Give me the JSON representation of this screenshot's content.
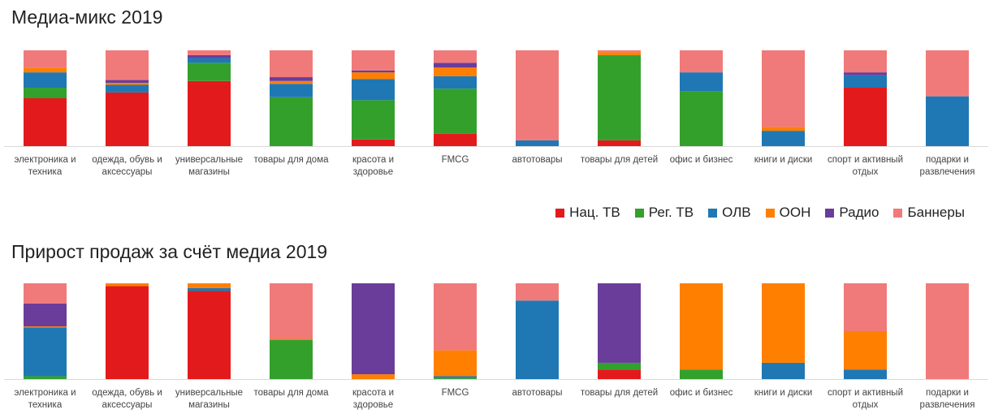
{
  "chart_data": [
    {
      "type": "bar",
      "stacked": "100%",
      "title": "Медиа-микс 2019",
      "categories": [
        [
          "электроника и",
          "техника"
        ],
        [
          "одежда, обувь и",
          "аксессуары"
        ],
        [
          "универсальные",
          "магазины"
        ],
        [
          "товары для дома"
        ],
        [
          "красота и",
          "здоровье"
        ],
        [
          "FMCG"
        ],
        [
          "автотовары"
        ],
        [
          "товары для детей"
        ],
        [
          "офис и бизнес"
        ],
        [
          "книги и диски"
        ],
        [
          "спорт и активный",
          "отдых"
        ],
        [
          "подарки и",
          "развлечения"
        ]
      ],
      "series": [
        {
          "name": "Нац. ТВ",
          "color": "#e31a1c",
          "values": [
            50,
            56,
            68,
            0,
            7,
            13,
            0,
            6,
            0,
            0,
            61,
            0
          ]
        },
        {
          "name": "Рег. ТВ",
          "color": "#33a02c",
          "values": [
            11,
            0,
            19,
            51,
            41,
            47,
            0,
            89,
            57,
            0,
            0,
            0
          ]
        },
        {
          "name": "ОЛВ",
          "color": "#1f78b4",
          "values": [
            16,
            8,
            5,
            14,
            22,
            13,
            6,
            0,
            20,
            16,
            13,
            52
          ]
        },
        {
          "name": "ООН",
          "color": "#ff7f00",
          "values": [
            5,
            2,
            0,
            3,
            7,
            9,
            0,
            3,
            0,
            4,
            0,
            0
          ]
        },
        {
          "name": "Радио",
          "color": "#6a3d9a",
          "values": [
            0,
            3,
            3,
            4,
            2,
            5,
            0,
            0,
            0,
            0,
            3,
            0
          ]
        },
        {
          "name": "Баннеры",
          "color": "#f07a7a",
          "values": [
            18,
            31,
            5,
            28,
            21,
            13,
            94,
            2,
            23,
            80,
            23,
            48
          ]
        }
      ],
      "ylim": [
        0,
        100
      ]
    },
    {
      "type": "bar",
      "stacked": "100%",
      "title": "Прирост продаж за счёт медиа 2019",
      "categories": [
        [
          "электроника и",
          "техника"
        ],
        [
          "одежда, обувь и",
          "аксессуары"
        ],
        [
          "универсальные",
          "магазины"
        ],
        [
          "товары для дома"
        ],
        [
          "красота и",
          "здоровье"
        ],
        [
          "FMCG"
        ],
        [
          "автотовары"
        ],
        [
          "товары для детей"
        ],
        [
          "офис и бизнес"
        ],
        [
          "книги и диски"
        ],
        [
          "спорт и активный",
          "отдых"
        ],
        [
          "подарки и",
          "развлечения"
        ]
      ],
      "series": [
        {
          "name": "Нац. ТВ",
          "color": "#e31a1c",
          "values": [
            0,
            97,
            92,
            0,
            0,
            0,
            0,
            10,
            0,
            0,
            0,
            0
          ]
        },
        {
          "name": "Рег. ТВ",
          "color": "#33a02c",
          "values": [
            3,
            0,
            0,
            41,
            0,
            1,
            0,
            7,
            10,
            0,
            0,
            0
          ]
        },
        {
          "name": "ОЛВ",
          "color": "#1f78b4",
          "values": [
            51,
            0,
            3,
            0,
            0,
            2,
            82,
            0,
            0,
            17,
            10,
            0
          ]
        },
        {
          "name": "ООН",
          "color": "#ff7f00",
          "values": [
            1,
            3,
            5,
            1,
            5,
            27,
            0,
            0,
            90,
            83,
            40,
            0
          ]
        },
        {
          "name": "Радио",
          "color": "#6a3d9a",
          "values": [
            24,
            0,
            0,
            0,
            95,
            0,
            0,
            83,
            0,
            0,
            0,
            0
          ]
        },
        {
          "name": "Баннеры",
          "color": "#f07a7a",
          "values": [
            21,
            0,
            0,
            58,
            0,
            70,
            18,
            0,
            0,
            0,
            50,
            100
          ]
        }
      ],
      "ylim": [
        0,
        100
      ]
    }
  ]
}
